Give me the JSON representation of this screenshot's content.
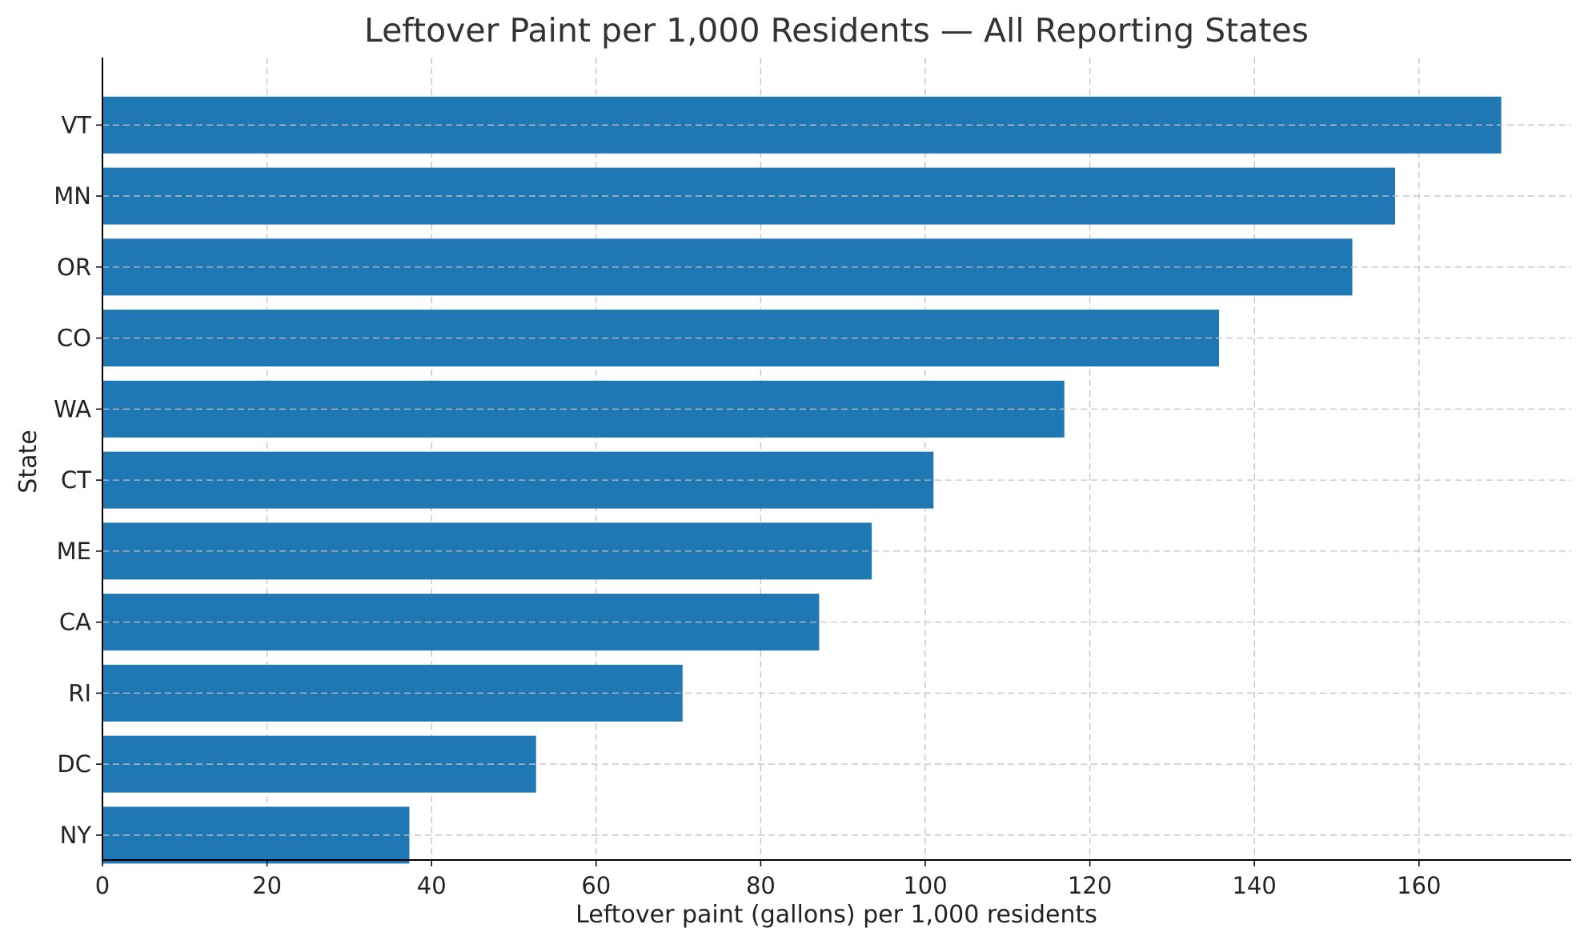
{
  "chart_data": {
    "type": "bar",
    "orientation": "horizontal",
    "title": "Leftover Paint per 1,000 Residents — All Reporting States",
    "xlabel": "Leftover paint (gallons) per 1,000 residents",
    "ylabel": "State",
    "categories": [
      "VT",
      "MN",
      "OR",
      "CO",
      "WA",
      "CT",
      "ME",
      "CA",
      "RI",
      "DC",
      "NY"
    ],
    "values": [
      170.0,
      157.1,
      151.9,
      135.7,
      116.9,
      101.0,
      93.5,
      87.1,
      70.5,
      52.7,
      37.3
    ],
    "xlim": [
      0,
      178.5
    ],
    "xticks": [
      0,
      20,
      40,
      60,
      80,
      100,
      120,
      140,
      160
    ],
    "grid": true,
    "bar_color": "#1f77b4",
    "grid_color": "#c2c2c2"
  }
}
